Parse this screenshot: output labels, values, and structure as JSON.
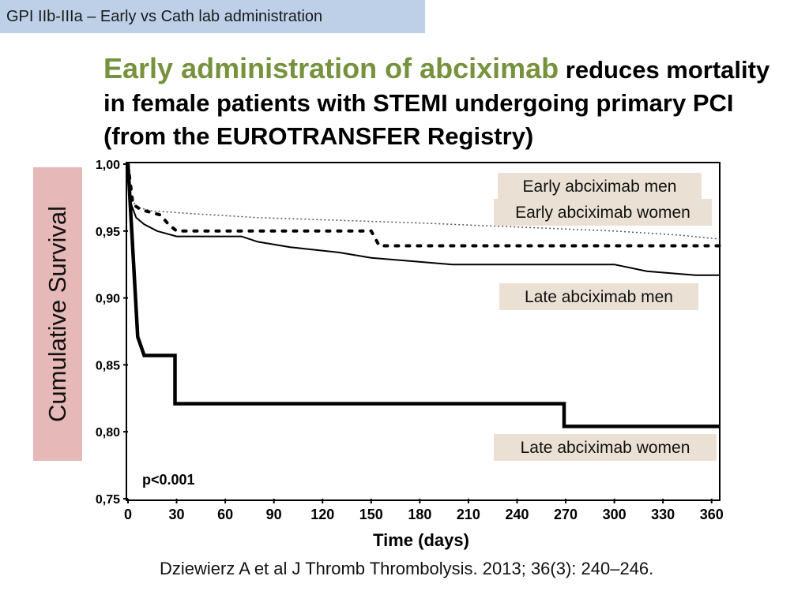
{
  "header": {
    "tag": "GPI IIb-IIIa – Early vs Cath lab administration"
  },
  "title": {
    "highlight": "Early administration of abciximab",
    "rest": " reduces mortality in female patients with STEMI undergoing primary PCI (from the EUROTRANSFER Registry)"
  },
  "citation": "Dziewierz A et al J Thromb Thrombolysis. 2013; 36(3): 240–246.",
  "colors": {
    "highlight": "#76923c",
    "tag_bg": "#bdd0e8",
    "ylabel_bg": "#e6b8b7",
    "callout_bg": "#eae1d4"
  },
  "chart_data": {
    "type": "line",
    "xlabel": "Time (days)",
    "ylabel": "Cumulative Survival",
    "xlim": [
      0,
      365
    ],
    "ylim": [
      0.75,
      1.0
    ],
    "x_ticks": [
      0,
      30,
      60,
      90,
      120,
      150,
      180,
      210,
      240,
      270,
      300,
      330,
      360
    ],
    "y_ticks": [
      {
        "value": 0.75,
        "label": "0,75"
      },
      {
        "value": 0.8,
        "label": "0,80"
      },
      {
        "value": 0.85,
        "label": "0,85"
      },
      {
        "value": 0.9,
        "label": "0,90"
      },
      {
        "value": 0.95,
        "label": "0,95"
      },
      {
        "value": 1.0,
        "label": "1,00"
      }
    ],
    "annotation": "p<0.001",
    "series": [
      {
        "name": "Early abciximab men",
        "style": "dotted-thin",
        "points": [
          [
            0,
            1.0
          ],
          [
            2,
            0.975
          ],
          [
            5,
            0.968
          ],
          [
            15,
            0.965
          ],
          [
            40,
            0.963
          ],
          [
            80,
            0.96
          ],
          [
            130,
            0.958
          ],
          [
            180,
            0.956
          ],
          [
            240,
            0.953
          ],
          [
            300,
            0.95
          ],
          [
            340,
            0.947
          ],
          [
            365,
            0.944
          ]
        ]
      },
      {
        "name": "Early abciximab women",
        "style": "dotted-bold",
        "points": [
          [
            0,
            1.0
          ],
          [
            3,
            0.97
          ],
          [
            8,
            0.966
          ],
          [
            20,
            0.962
          ],
          [
            25,
            0.955
          ],
          [
            30,
            0.95
          ],
          [
            150,
            0.95
          ],
          [
            155,
            0.939
          ],
          [
            365,
            0.939
          ]
        ]
      },
      {
        "name": "Late abciximab men",
        "style": "solid-thin",
        "points": [
          [
            0,
            1.0
          ],
          [
            2,
            0.97
          ],
          [
            5,
            0.96
          ],
          [
            10,
            0.955
          ],
          [
            18,
            0.95
          ],
          [
            30,
            0.946
          ],
          [
            70,
            0.946
          ],
          [
            80,
            0.942
          ],
          [
            100,
            0.938
          ],
          [
            130,
            0.934
          ],
          [
            150,
            0.93
          ],
          [
            170,
            0.928
          ],
          [
            200,
            0.925
          ],
          [
            250,
            0.925
          ],
          [
            300,
            0.925
          ],
          [
            320,
            0.92
          ],
          [
            350,
            0.917
          ],
          [
            365,
            0.917
          ]
        ]
      },
      {
        "name": "Late abciximab women",
        "style": "solid-bold",
        "points": [
          [
            0,
            1.0
          ],
          [
            2,
            0.957
          ],
          [
            4,
            0.914
          ],
          [
            6,
            0.871
          ],
          [
            10,
            0.857
          ],
          [
            29,
            0.857
          ],
          [
            29,
            0.821
          ],
          [
            269,
            0.821
          ],
          [
            269,
            0.804
          ],
          [
            365,
            0.804
          ]
        ]
      }
    ]
  }
}
